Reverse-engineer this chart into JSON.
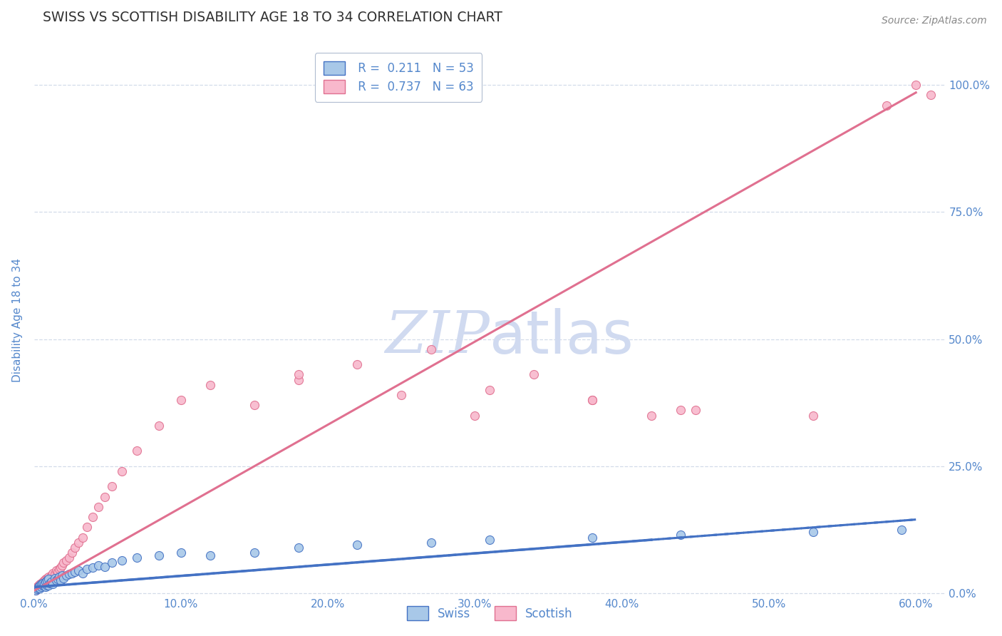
{
  "title": "SWISS VS SCOTTISH DISABILITY AGE 18 TO 34 CORRELATION CHART",
  "source": "Source: ZipAtlas.com",
  "ylabel": "Disability Age 18 to 34",
  "xlim": [
    0.0,
    0.62
  ],
  "ylim": [
    -0.005,
    1.08
  ],
  "xtick_labels": [
    "0.0%",
    "10.0%",
    "20.0%",
    "30.0%",
    "40.0%",
    "50.0%",
    "60.0%"
  ],
  "xtick_vals": [
    0.0,
    0.1,
    0.2,
    0.3,
    0.4,
    0.5,
    0.6
  ],
  "ytick_labels": [
    "0.0%",
    "25.0%",
    "50.0%",
    "75.0%",
    "100.0%"
  ],
  "ytick_vals": [
    0.0,
    0.25,
    0.5,
    0.75,
    1.0
  ],
  "legend_R_swiss": "0.211",
  "legend_N_swiss": "53",
  "legend_R_scottish": "0.737",
  "legend_N_scottish": "63",
  "swiss_color": "#a8c8e8",
  "scottish_color": "#f8b8cc",
  "swiss_line_color": "#4472c4",
  "scottish_line_color": "#e07090",
  "grid_color": "#c8d4e4",
  "title_color": "#303030",
  "label_color": "#5588cc",
  "watermark_color": "#d0daf0",
  "swiss_x": [
    0.001,
    0.002,
    0.003,
    0.003,
    0.004,
    0.004,
    0.005,
    0.005,
    0.006,
    0.006,
    0.007,
    0.007,
    0.008,
    0.008,
    0.009,
    0.009,
    0.01,
    0.01,
    0.011,
    0.012,
    0.013,
    0.014,
    0.015,
    0.016,
    0.017,
    0.018,
    0.019,
    0.02,
    0.022,
    0.024,
    0.026,
    0.028,
    0.03,
    0.033,
    0.036,
    0.04,
    0.044,
    0.048,
    0.053,
    0.06,
    0.07,
    0.085,
    0.1,
    0.12,
    0.15,
    0.18,
    0.22,
    0.27,
    0.31,
    0.38,
    0.44,
    0.53,
    0.59
  ],
  "swiss_y": [
    0.005,
    0.008,
    0.01,
    0.012,
    0.01,
    0.015,
    0.012,
    0.018,
    0.015,
    0.02,
    0.014,
    0.018,
    0.012,
    0.022,
    0.016,
    0.025,
    0.015,
    0.028,
    0.02,
    0.022,
    0.018,
    0.03,
    0.025,
    0.028,
    0.032,
    0.025,
    0.035,
    0.03,
    0.035,
    0.038,
    0.04,
    0.042,
    0.045,
    0.04,
    0.048,
    0.05,
    0.055,
    0.052,
    0.06,
    0.065,
    0.07,
    0.075,
    0.08,
    0.075,
    0.08,
    0.09,
    0.095,
    0.1,
    0.105,
    0.11,
    0.115,
    0.12,
    0.125
  ],
  "scottish_x": [
    0.001,
    0.002,
    0.002,
    0.003,
    0.003,
    0.004,
    0.004,
    0.005,
    0.005,
    0.006,
    0.006,
    0.007,
    0.007,
    0.008,
    0.008,
    0.009,
    0.009,
    0.01,
    0.01,
    0.011,
    0.012,
    0.013,
    0.014,
    0.015,
    0.016,
    0.017,
    0.018,
    0.019,
    0.02,
    0.022,
    0.024,
    0.026,
    0.028,
    0.03,
    0.033,
    0.036,
    0.04,
    0.044,
    0.048,
    0.053,
    0.06,
    0.07,
    0.085,
    0.1,
    0.12,
    0.15,
    0.18,
    0.22,
    0.27,
    0.31,
    0.38,
    0.44,
    0.53,
    0.58,
    0.6,
    0.61,
    0.18,
    0.25,
    0.3,
    0.34,
    0.38,
    0.42,
    0.45
  ],
  "scottish_y": [
    0.005,
    0.008,
    0.012,
    0.01,
    0.015,
    0.012,
    0.018,
    0.015,
    0.02,
    0.018,
    0.022,
    0.016,
    0.025,
    0.02,
    0.028,
    0.022,
    0.03,
    0.025,
    0.032,
    0.028,
    0.035,
    0.04,
    0.038,
    0.045,
    0.042,
    0.048,
    0.05,
    0.055,
    0.06,
    0.065,
    0.07,
    0.08,
    0.09,
    0.1,
    0.11,
    0.13,
    0.15,
    0.17,
    0.19,
    0.21,
    0.24,
    0.28,
    0.33,
    0.38,
    0.41,
    0.37,
    0.42,
    0.45,
    0.48,
    0.4,
    0.38,
    0.36,
    0.35,
    0.96,
    1.0,
    0.98,
    0.43,
    0.39,
    0.35,
    0.43,
    0.38,
    0.35,
    0.36
  ],
  "swiss_reg": [
    0.0,
    0.6,
    0.012,
    0.145
  ],
  "scottish_reg": [
    0.0,
    0.6,
    0.005,
    0.985
  ]
}
